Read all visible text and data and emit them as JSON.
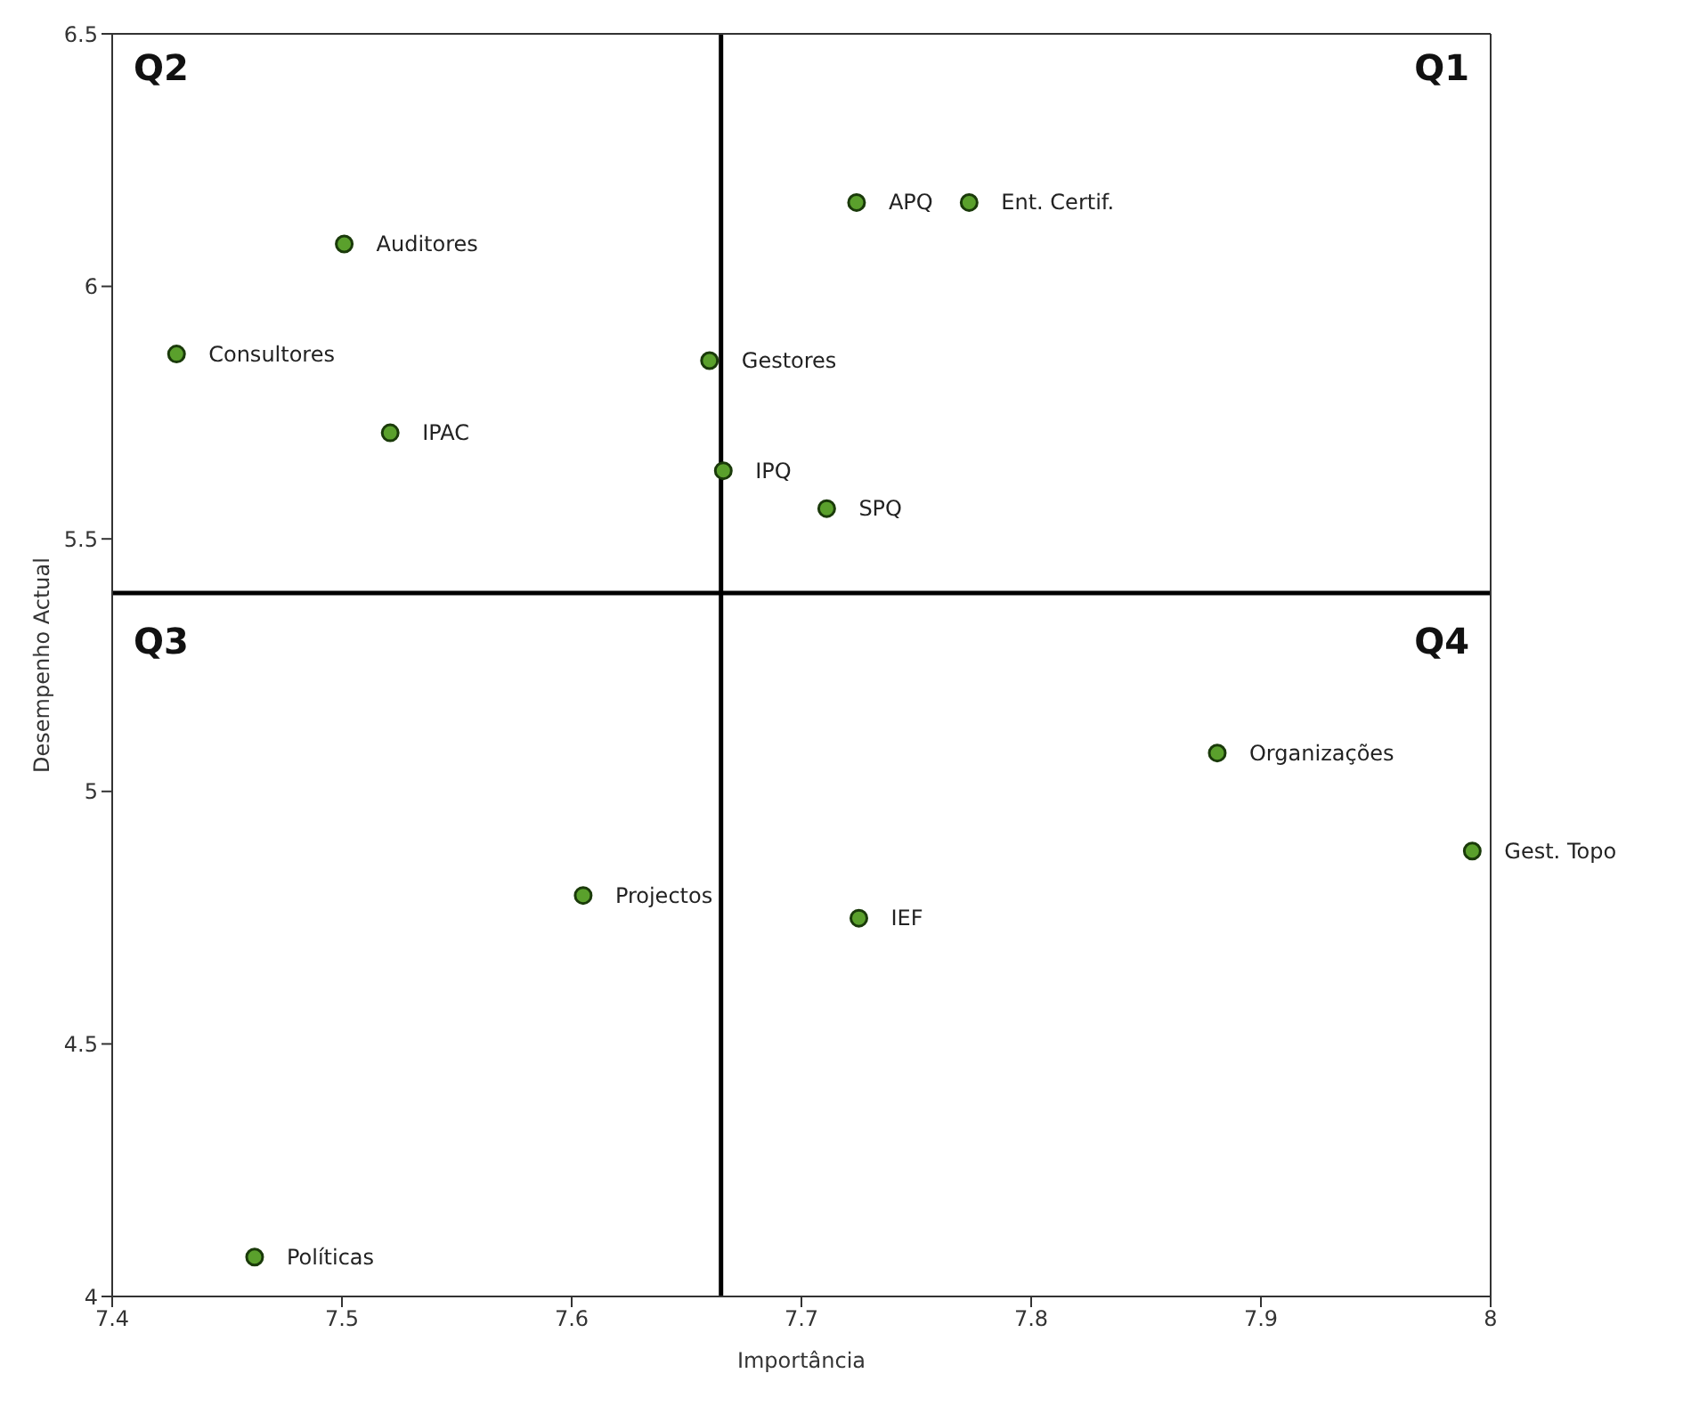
{
  "chart_data": {
    "type": "scatter",
    "xlabel": "Importância",
    "ylabel": "Desempenho Actual",
    "x": [
      7.724,
      7.773,
      7.501,
      7.428,
      7.66,
      7.521,
      7.666,
      7.711,
      7.881,
      7.992,
      7.605,
      7.725,
      7.462
    ],
    "series": [
      {
        "color": "#5aa02c",
        "values": [
          6.166,
          6.166,
          6.084,
          5.866,
          5.853,
          5.71,
          5.635,
          5.56,
          5.076,
          4.882,
          4.794,
          4.749,
          4.078
        ]
      }
    ],
    "xlim": [
      7.4,
      8
    ],
    "xticks": [
      7.4,
      7.5,
      7.6,
      7.7,
      7.8,
      7.9,
      8
    ],
    "ylim": [
      4,
      6.5
    ],
    "yticks": [
      4,
      4.5,
      5,
      5.5,
      6,
      6.5
    ],
    "grid": false,
    "legend": false,
    "marker": "circle",
    "ref_lines": [
      {
        "axis": "x",
        "value": 7.665,
        "color": "#000000"
      },
      {
        "axis": "y",
        "value": 5.393,
        "color": "#000000"
      }
    ],
    "annotations": [
      "Q2",
      "Q1",
      "Q3",
      "Q4",
      {
        "text": "APQ",
        "x": 7.724,
        "y": 6.166
      },
      {
        "text": "Ent. Certif.",
        "x": 7.773,
        "y": 6.166
      },
      {
        "text": "Auditores",
        "x": 7.501,
        "y": 6.084
      },
      {
        "text": "Consultores",
        "x": 7.428,
        "y": 5.866
      },
      {
        "text": "Gestores",
        "x": 7.66,
        "y": 5.853
      },
      {
        "text": "IPAC",
        "x": 7.521,
        "y": 5.71
      },
      {
        "text": "IPQ",
        "x": 7.666,
        "y": 5.635
      },
      {
        "text": "SPQ",
        "x": 7.711,
        "y": 5.56
      },
      {
        "text": "Organizações",
        "x": 7.881,
        "y": 5.076
      },
      {
        "text": "Gest. Topo",
        "x": 7.992,
        "y": 4.882
      },
      {
        "text": "Projectos",
        "x": 7.605,
        "y": 4.794
      },
      {
        "text": "IEF",
        "x": 7.725,
        "y": 4.749
      },
      {
        "text": "Políticas",
        "x": 7.462,
        "y": 4.078
      }
    ]
  }
}
